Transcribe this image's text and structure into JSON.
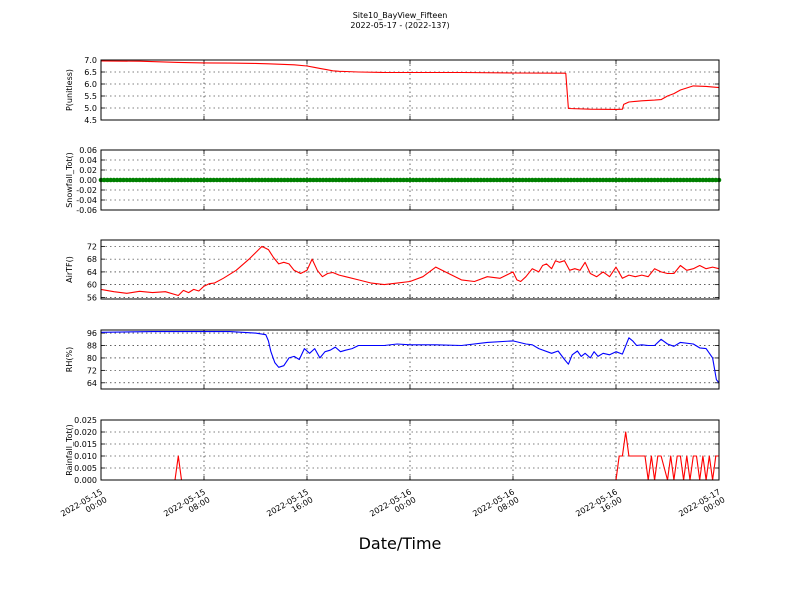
{
  "title": "Site10_BayView_Fifteen",
  "subtitle": "2022-05-17 - (2022-137)",
  "xlabel": "Date/Time",
  "x_ticks": [
    {
      "d1": "2022-05-15",
      "d2": "00:00",
      "h": 0
    },
    {
      "d1": "2022-05-15",
      "d2": "08:00",
      "h": 8
    },
    {
      "d1": "2022-05-15",
      "d2": "16:00",
      "h": 16
    },
    {
      "d1": "2022-05-16",
      "d2": "00:00",
      "h": 24
    },
    {
      "d1": "2022-05-16",
      "d2": "08:00",
      "h": 32
    },
    {
      "d1": "2022-05-16",
      "d2": "16:00",
      "h": 40
    },
    {
      "d1": "2022-05-17",
      "d2": "00:00",
      "h": 48
    }
  ],
  "chart_data": [
    {
      "type": "line",
      "ylabel": "P(unitless)",
      "ylim": [
        4.5,
        7.0
      ],
      "yticks": [
        "7.0",
        "6.5",
        "6.0",
        "5.5",
        "5.0",
        "4.5"
      ],
      "color": "#ff0000",
      "grid": true,
      "x_hours": [
        0,
        3,
        6,
        8,
        10,
        12,
        13,
        14,
        15,
        16,
        16.5,
        17,
        17.5,
        18,
        18.5,
        19,
        20,
        22,
        24,
        28,
        32,
        36,
        36.1,
        36.3,
        38,
        40,
        40.5,
        40.6,
        41,
        42,
        43,
        43.5,
        44,
        44.5,
        45,
        46,
        47,
        48
      ],
      "values": [
        6.96,
        6.95,
        6.9,
        6.88,
        6.87,
        6.86,
        6.84,
        6.82,
        6.8,
        6.75,
        6.7,
        6.65,
        6.6,
        6.55,
        6.53,
        6.52,
        6.5,
        6.48,
        6.48,
        6.48,
        6.46,
        6.45,
        6.44,
        4.98,
        4.95,
        4.94,
        4.95,
        5.15,
        5.25,
        5.3,
        5.33,
        5.35,
        5.5,
        5.6,
        5.75,
        5.92,
        5.9,
        5.85
      ]
    },
    {
      "type": "scatter",
      "ylabel": "Snowfall_Tot()",
      "ylim": [
        -0.06,
        0.06
      ],
      "yticks": [
        "0.06",
        "0.04",
        "0.02",
        "0.00",
        "-0.02",
        "-0.04",
        "-0.06"
      ],
      "color": "#008000",
      "grid": true,
      "x_start_hour": 0,
      "x_end_hour": 48,
      "interval_minutes": 15,
      "constant_value": 0.0
    },
    {
      "type": "line",
      "ylabel": "AirTF()",
      "ylim": [
        55.5,
        74
      ],
      "yticks": [
        "72",
        "68",
        "64",
        "60",
        "56"
      ],
      "color": "#ff0000",
      "grid": true,
      "x_hours": [
        0,
        1,
        2,
        3,
        4,
        5,
        6,
        6.4,
        6.8,
        7.2,
        7.6,
        8,
        8.4,
        8.8,
        9.5,
        10.5,
        11.5,
        12.5,
        13,
        13.4,
        13.8,
        14.2,
        14.6,
        15,
        15.5,
        16,
        16.4,
        16.8,
        17.2,
        17.6,
        18,
        18.5,
        19,
        20,
        21,
        22,
        23,
        24,
        25,
        26,
        27,
        28,
        29,
        30,
        31,
        32,
        32.3,
        32.6,
        33,
        33.5,
        34,
        34.3,
        34.6,
        35,
        35.3,
        35.6,
        36,
        36.4,
        36.8,
        37.2,
        37.6,
        38,
        38.5,
        39,
        39.5,
        40,
        40.5,
        41,
        41.5,
        42,
        42.5,
        43,
        43.5,
        44,
        44.5,
        45,
        45.5,
        46,
        46.5,
        47,
        47.5,
        48
      ],
      "values": [
        58.5,
        57.8,
        57.3,
        57.9,
        57.5,
        57.8,
        56.6,
        58.2,
        57.5,
        58.5,
        58.0,
        59.5,
        60.3,
        60.5,
        62,
        64.5,
        68,
        72,
        71,
        68.5,
        66.5,
        67.0,
        66.5,
        64.5,
        63.5,
        64.5,
        68.0,
        64.5,
        62.5,
        63.5,
        63.8,
        63.0,
        62.5,
        61.5,
        60.5,
        60.0,
        60.5,
        61.0,
        62.5,
        65.5,
        63.5,
        61.5,
        61.0,
        62.5,
        62.0,
        64.0,
        61.5,
        61.0,
        62.5,
        65.0,
        64.0,
        66.0,
        66.5,
        65.0,
        67.5,
        67.0,
        67.5,
        64.5,
        65.0,
        64.5,
        67.0,
        63.5,
        62.5,
        64.0,
        62.5,
        65.5,
        62.0,
        63.0,
        62.5,
        63.0,
        62.5,
        65.0,
        64.0,
        63.5,
        63.5,
        66.0,
        64.5,
        65.0,
        66.0,
        65.0,
        65.5,
        65.0
      ]
    },
    {
      "type": "line",
      "ylabel": "RH(%)",
      "ylim": [
        60,
        98
      ],
      "yticks": [
        "96",
        "88",
        "80",
        "72",
        "64"
      ],
      "color": "#0000ff",
      "grid": true,
      "x_hours": [
        0,
        4,
        8,
        10,
        12,
        12.8,
        13,
        13.2,
        13.5,
        13.8,
        14.2,
        14.6,
        15,
        15.4,
        15.8,
        16.2,
        16.6,
        17,
        17.4,
        17.8,
        18.2,
        18.6,
        19,
        19.5,
        20,
        21,
        22,
        23,
        24,
        26,
        28,
        30,
        32,
        33,
        33.5,
        34,
        35,
        35.5,
        36,
        36.3,
        36.6,
        37,
        37.3,
        37.6,
        38,
        38.3,
        38.6,
        39,
        39.5,
        40,
        40.5,
        41,
        41.3,
        41.6,
        42,
        42.5,
        43,
        43.5,
        44,
        44.5,
        45,
        46,
        46.5,
        47,
        47.5,
        47.8,
        48
      ],
      "values": [
        96.5,
        97,
        97,
        97,
        96,
        95,
        91,
        84,
        77,
        74,
        75,
        80,
        81,
        79,
        86,
        83,
        86,
        80,
        84,
        85,
        87,
        84,
        85,
        86,
        88,
        88,
        88,
        89,
        88.5,
        88.5,
        88,
        90,
        91,
        89,
        88.5,
        86,
        83,
        84.5,
        79,
        76,
        82,
        84.5,
        81,
        83,
        80,
        84,
        81,
        83,
        82,
        84,
        82.5,
        93,
        91,
        88,
        88.5,
        88,
        88,
        92,
        89,
        87.5,
        90,
        89,
        86.5,
        86,
        80,
        66,
        64
      ]
    },
    {
      "type": "line",
      "ylabel": "Rainfall_Tot()",
      "ylim": [
        0,
        0.025
      ],
      "yticks": [
        "0.025",
        "0.020",
        "0.015",
        "0.010",
        "0.005",
        "0.000"
      ],
      "color": "#ff0000",
      "grid": true,
      "x_hours": [
        0,
        5.75,
        6.0,
        6.25,
        40,
        40.25,
        40.5,
        40.75,
        41.0,
        41.25,
        42.25,
        42.5,
        42.75,
        43.0,
        43.25,
        43.5,
        44.0,
        44.25,
        44.5,
        44.75,
        45.0,
        45.25,
        45.5,
        45.75,
        46.0,
        46.25,
        46.5,
        46.75,
        47.0,
        47.25,
        47.5,
        47.75,
        48
      ],
      "values": [
        0,
        0,
        0.01,
        0,
        0,
        0.01,
        0.01,
        0.02,
        0.01,
        0.01,
        0.01,
        0,
        0.01,
        0,
        0.01,
        0.01,
        0,
        0.01,
        0,
        0.01,
        0.01,
        0,
        0.01,
        0,
        0.01,
        0.01,
        0,
        0.01,
        0,
        0.01,
        0,
        0.01,
        0.01
      ]
    }
  ]
}
